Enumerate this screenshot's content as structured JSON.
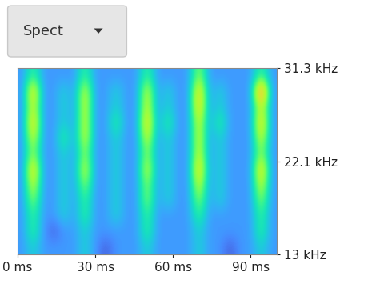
{
  "chart_data": {
    "type": "heatmap",
    "button": "Spect",
    "xlim": [
      0,
      100
    ],
    "xticks": [
      {
        "value": 0,
        "label": "0 ms"
      },
      {
        "value": 30,
        "label": "30 ms"
      },
      {
        "value": 60,
        "label": "60 ms"
      },
      {
        "value": 90,
        "label": "90 ms"
      }
    ],
    "ylim": [
      13,
      31.3
    ],
    "yticks": [
      {
        "value": 13,
        "label": "13 kHz"
      },
      {
        "value": 22.1,
        "label": "22.1 kHz"
      },
      {
        "value": 31.3,
        "label": "31.3 kHz"
      }
    ],
    "tick_labels": true,
    "clim": [
      0,
      10
    ],
    "cells": [
      [
        2,
        3,
        2,
        2,
        2,
        2,
        3,
        2,
        1,
        2,
        2,
        2,
        3,
        2,
        2,
        2,
        2,
        3,
        2,
        2,
        1,
        2,
        2,
        3,
        2
      ],
      [
        2,
        4,
        2,
        1,
        2,
        2,
        3,
        2,
        2,
        2,
        2,
        2,
        4,
        2,
        2,
        2,
        2,
        3,
        2,
        2,
        2,
        2,
        2,
        4,
        2
      ],
      [
        2,
        4,
        2,
        2,
        3,
        2,
        4,
        2,
        2,
        3,
        2,
        2,
        4,
        2,
        2,
        2,
        2,
        4,
        2,
        2,
        2,
        2,
        2,
        4,
        2
      ],
      [
        2,
        5,
        2,
        2,
        3,
        2,
        4,
        2,
        2,
        3,
        2,
        2,
        5,
        2,
        3,
        2,
        2,
        5,
        2,
        3,
        2,
        2,
        2,
        5,
        2
      ],
      [
        2,
        6,
        2,
        2,
        3,
        2,
        5,
        2,
        2,
        3,
        2,
        2,
        5,
        2,
        3,
        2,
        2,
        6,
        2,
        3,
        2,
        2,
        2,
        6,
        2
      ],
      [
        2,
        7,
        2,
        2,
        3,
        2,
        6,
        2,
        2,
        3,
        2,
        2,
        6,
        2,
        3,
        2,
        2,
        7,
        2,
        3,
        2,
        2,
        2,
        7,
        2
      ],
      [
        2,
        5,
        2,
        2,
        3,
        2,
        5,
        2,
        2,
        3,
        2,
        2,
        5,
        2,
        3,
        2,
        2,
        6,
        2,
        3,
        2,
        2,
        2,
        5,
        2
      ],
      [
        2,
        6,
        2,
        2,
        4,
        2,
        6,
        2,
        2,
        3,
        2,
        2,
        6,
        2,
        3,
        2,
        2,
        6,
        2,
        3,
        2,
        2,
        2,
        6,
        2
      ],
      [
        2,
        7,
        2,
        2,
        3,
        2,
        6,
        2,
        2,
        4,
        2,
        2,
        7,
        2,
        4,
        2,
        2,
        6,
        2,
        4,
        2,
        2,
        2,
        7,
        2
      ],
      [
        2,
        6,
        2,
        2,
        3,
        2,
        6,
        2,
        2,
        3,
        2,
        2,
        6,
        2,
        3,
        2,
        2,
        7,
        2,
        3,
        2,
        2,
        2,
        6,
        2
      ],
      [
        2,
        7,
        2,
        2,
        3,
        2,
        6,
        2,
        2,
        3,
        2,
        2,
        6,
        2,
        3,
        2,
        2,
        7,
        2,
        3,
        2,
        2,
        2,
        9,
        2
      ],
      [
        2,
        4,
        2,
        2,
        2,
        2,
        4,
        2,
        2,
        2,
        2,
        2,
        4,
        2,
        2,
        2,
        2,
        5,
        2,
        2,
        2,
        2,
        2,
        4,
        2
      ]
    ]
  }
}
